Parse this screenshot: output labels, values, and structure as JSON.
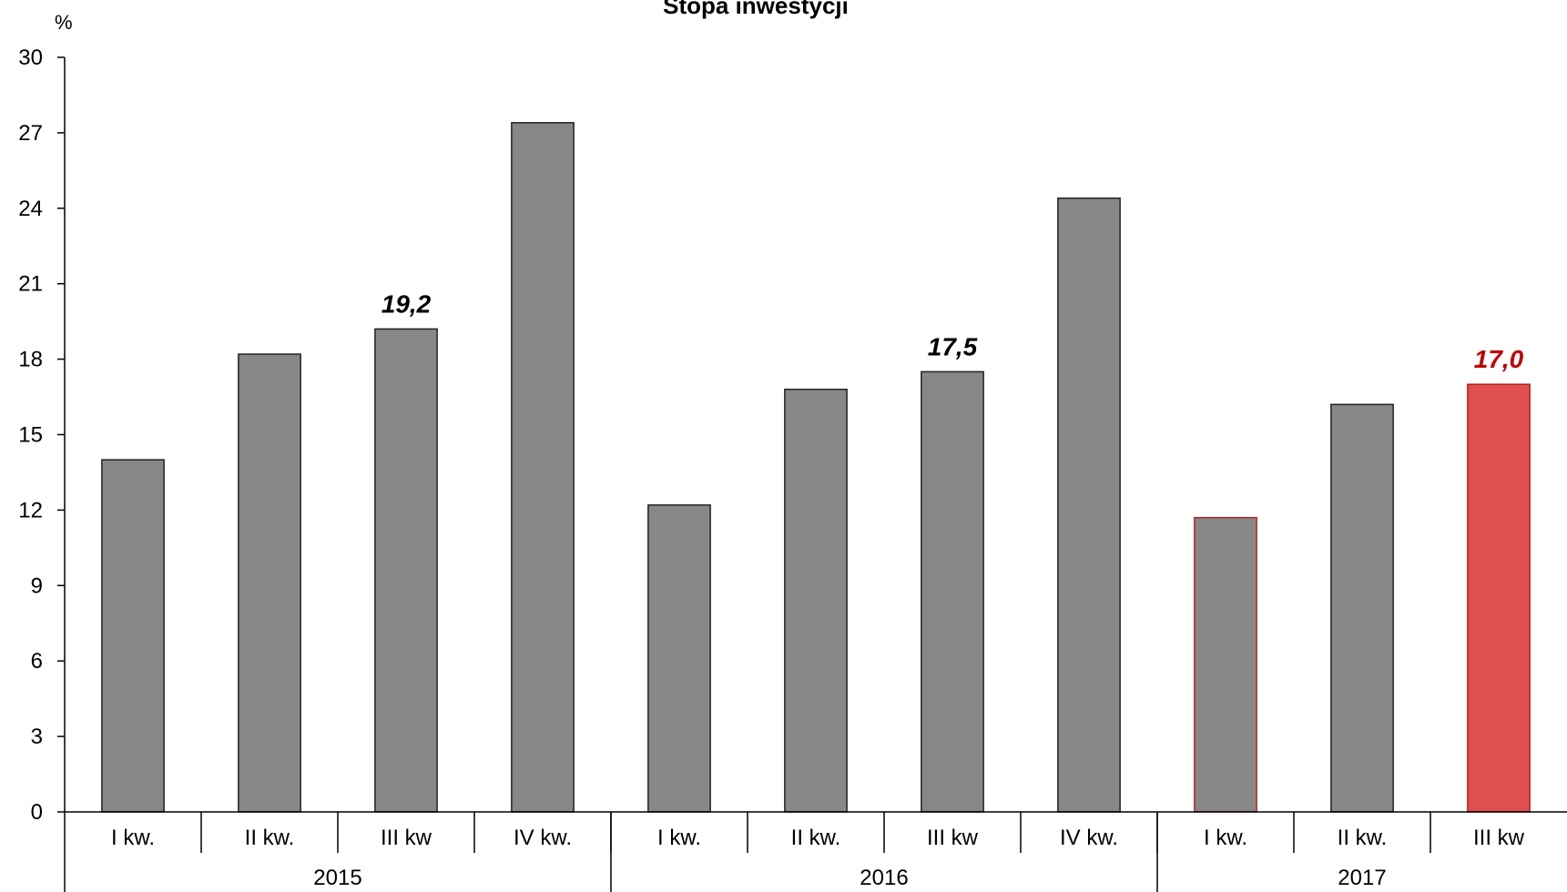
{
  "chart_data": {
    "type": "bar",
    "title": "Stopa inwestycji",
    "ylabel": "%",
    "ylim": [
      0,
      30
    ],
    "yticks": [
      0,
      3,
      6,
      9,
      12,
      15,
      18,
      21,
      24,
      27,
      30
    ],
    "grid": false,
    "categories": [
      "I kw.",
      "II kw.",
      "III kw",
      "IV kw.",
      "I kw.",
      "II kw.",
      "III kw",
      "IV kw.",
      "I kw.",
      "II kw.",
      "III kw"
    ],
    "groups": [
      {
        "label": "2015",
        "count": 4
      },
      {
        "label": "2016",
        "count": 4
      },
      {
        "label": "2017",
        "count": 3
      }
    ],
    "values": [
      14.0,
      18.2,
      19.2,
      27.4,
      12.2,
      16.8,
      17.5,
      24.4,
      11.7,
      16.2,
      17.0
    ],
    "data_labels": [
      null,
      null,
      "19,2",
      null,
      null,
      null,
      "17,5",
      null,
      null,
      null,
      "17,0"
    ],
    "colors": {
      "bar": "#888888",
      "bar_stroke": "#222222",
      "highlight": "#df4f4f",
      "highlight_stroke": "#b22222",
      "highlight_label": "#c00000"
    },
    "highlight_fill_indices": [
      10
    ],
    "highlight_stroke_indices": [
      8,
      10
    ],
    "highlight_label_indices": [
      10
    ]
  }
}
